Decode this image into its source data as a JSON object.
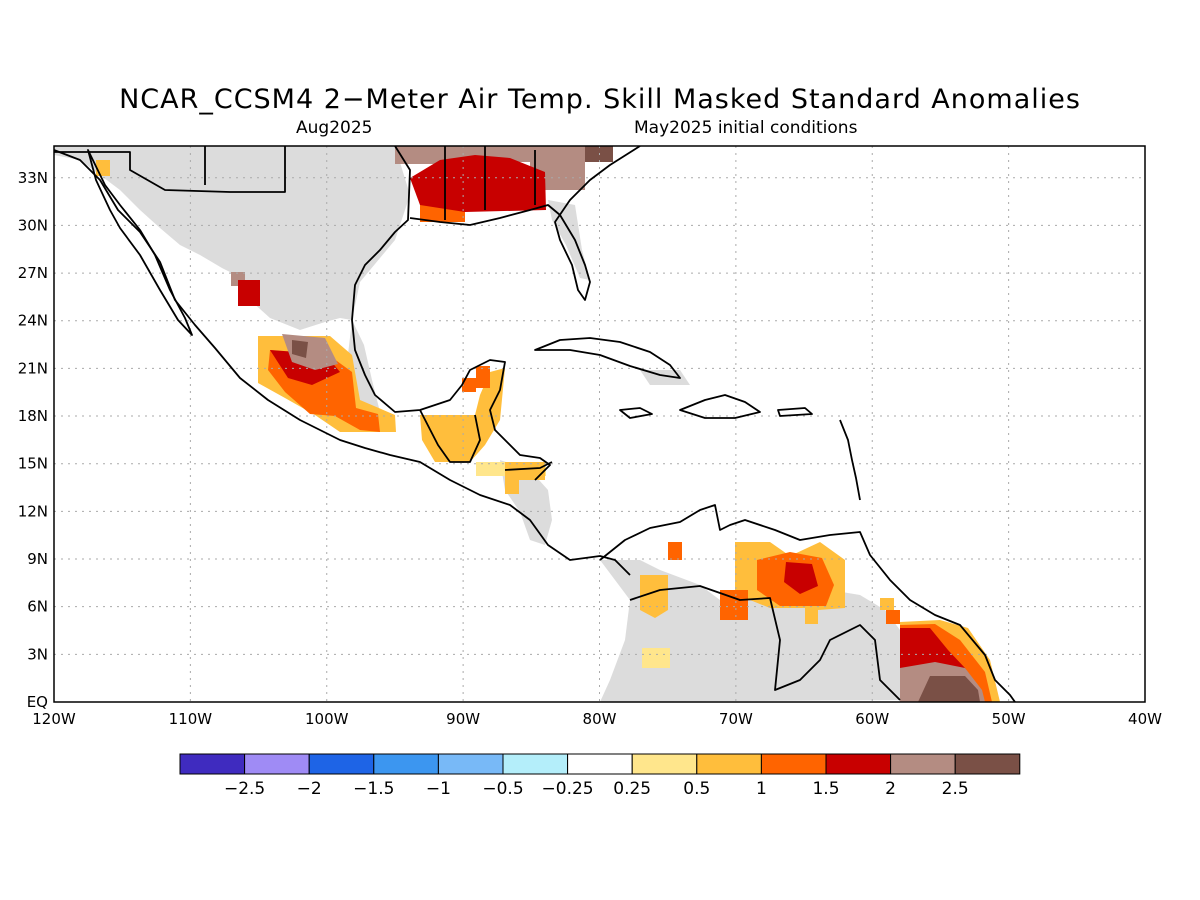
{
  "title": "NCAR_CCSM4 2−Meter Air Temp. Skill Masked Standard Anomalies",
  "subtitle_left": "Aug2025",
  "subtitle_right": "May2025 initial conditions",
  "map": {
    "lon_range": [
      -120,
      -40
    ],
    "lat_range": [
      0,
      35
    ],
    "x_tick_labels": [
      "120W",
      "110W",
      "100W",
      "90W",
      "80W",
      "70W",
      "60W",
      "50W",
      "40W"
    ],
    "y_tick_labels": [
      "EQ",
      "3N",
      "6N",
      "9N",
      "12N",
      "15N",
      "18N",
      "21N",
      "24N",
      "27N",
      "30N",
      "33N"
    ],
    "grid": true,
    "land_masked_color": "#dcdcdc"
  },
  "colorbar": {
    "colors": [
      "#3f2bbf",
      "#9f8bf5",
      "#1e64e6",
      "#3c96f0",
      "#78b9f7",
      "#b4eefa",
      "#ffffff",
      "#ffe68c",
      "#ffbe3c",
      "#ff6400",
      "#c80000",
      "#b48c82",
      "#7a5046"
    ],
    "labels": [
      "−2.5",
      "−2",
      "−1.5",
      "−1",
      "−0.5",
      "−0.25",
      "0.25",
      "0.5",
      "1",
      "1.5",
      "2",
      "2.5"
    ]
  }
}
